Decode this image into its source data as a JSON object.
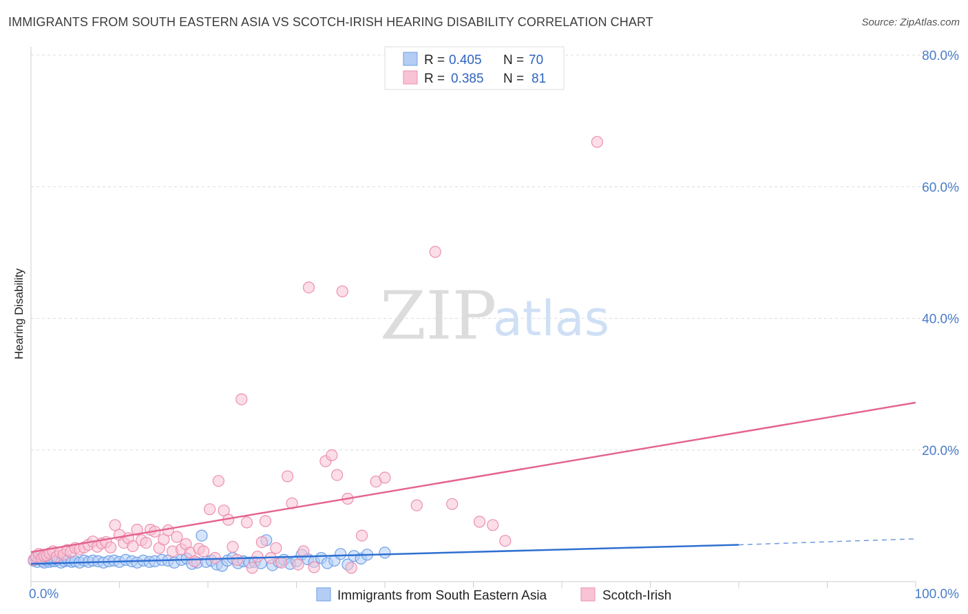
{
  "header": {
    "title": "IMMIGRANTS FROM SOUTH EASTERN ASIA VS SCOTCH-IRISH HEARING DISABILITY CORRELATION CHART",
    "source": "Source: ZipAtlas.com"
  },
  "watermark": {
    "zip": "ZIP",
    "atlas": "atlas"
  },
  "legend": {
    "rows": [
      {
        "r_label": "R =",
        "r_value": "0.405",
        "n_label": "N =",
        "n_value": "70",
        "color": "#8fb4f0"
      },
      {
        "r_label": "R =",
        "r_value": "0.385",
        "n_label": "N =",
        "n_value": "81",
        "color": "#f5a8c0"
      }
    ]
  },
  "chart_data": {
    "type": "scatter",
    "title": "IMMIGRANTS FROM SOUTH EASTERN ASIA VS SCOTCH-IRISH HEARING DISABILITY CORRELATION CHART",
    "xlabel": "",
    "ylabel": "Hearing Disability",
    "xlim": [
      0,
      100
    ],
    "ylim": [
      0,
      80
    ],
    "x_tick_labels": [
      "0.0%",
      "100.0%"
    ],
    "y_ticks": [
      20,
      40,
      60,
      80
    ],
    "y_tick_labels": [
      "20.0%",
      "40.0%",
      "60.0%",
      "80.0%"
    ],
    "grid": true,
    "series": [
      {
        "name": "Immigrants from South Eastern Asia",
        "color": "#6f9fe6",
        "fill": "#b3cdf5",
        "line_color": "#2e6fd1",
        "trend": {
          "x0": 0,
          "y0": 2.7,
          "x1": 80,
          "y1": 5.6,
          "dashed_to_x": 100,
          "dashed_to_y": 6.5
        },
        "points": [
          [
            0.3,
            3.2
          ],
          [
            0.5,
            3.6
          ],
          [
            0.7,
            3.0
          ],
          [
            0.9,
            3.4
          ],
          [
            1.1,
            3.9
          ],
          [
            1.3,
            3.1
          ],
          [
            1.5,
            2.9
          ],
          [
            1.7,
            3.3
          ],
          [
            1.9,
            3.5
          ],
          [
            2.1,
            3.0
          ],
          [
            2.4,
            3.2
          ],
          [
            2.7,
            3.1
          ],
          [
            3.0,
            3.3
          ],
          [
            3.4,
            2.9
          ],
          [
            3.8,
            3.1
          ],
          [
            4.2,
            3.2
          ],
          [
            4.6,
            3.0
          ],
          [
            5.0,
            3.1
          ],
          [
            5.5,
            2.9
          ],
          [
            6.0,
            3.2
          ],
          [
            6.5,
            3.0
          ],
          [
            7.0,
            3.2
          ],
          [
            7.6,
            3.1
          ],
          [
            8.2,
            2.9
          ],
          [
            8.8,
            3.1
          ],
          [
            9.4,
            3.2
          ],
          [
            10.0,
            3.0
          ],
          [
            10.7,
            3.3
          ],
          [
            11.4,
            3.1
          ],
          [
            12.0,
            2.9
          ],
          [
            12.7,
            3.2
          ],
          [
            13.4,
            3.0
          ],
          [
            14.0,
            3.1
          ],
          [
            14.8,
            3.3
          ],
          [
            15.5,
            3.2
          ],
          [
            16.2,
            2.9
          ],
          [
            17.0,
            3.3
          ],
          [
            17.6,
            3.5
          ],
          [
            18.2,
            2.7
          ],
          [
            18.8,
            2.9
          ],
          [
            19.3,
            7.0
          ],
          [
            19.8,
            3.0
          ],
          [
            20.4,
            3.2
          ],
          [
            21.0,
            2.6
          ],
          [
            21.6,
            2.4
          ],
          [
            22.2,
            3.2
          ],
          [
            22.8,
            3.6
          ],
          [
            23.4,
            2.8
          ],
          [
            24.0,
            3.1
          ],
          [
            24.7,
            2.9
          ],
          [
            25.3,
            3.0
          ],
          [
            26.0,
            2.8
          ],
          [
            26.6,
            6.3
          ],
          [
            27.3,
            2.5
          ],
          [
            28.0,
            3.0
          ],
          [
            28.6,
            3.3
          ],
          [
            29.3,
            2.7
          ],
          [
            30.0,
            3.1
          ],
          [
            30.6,
            4.1
          ],
          [
            31.3,
            3.4
          ],
          [
            32.0,
            3.0
          ],
          [
            32.8,
            3.6
          ],
          [
            33.5,
            2.8
          ],
          [
            34.3,
            3.2
          ],
          [
            35.0,
            4.2
          ],
          [
            35.8,
            2.6
          ],
          [
            36.5,
            3.9
          ],
          [
            37.3,
            3.5
          ],
          [
            38.0,
            4.1
          ],
          [
            40.0,
            4.4
          ]
        ]
      },
      {
        "name": "Scotch-Irish",
        "color": "#ec8fb0",
        "fill": "#f8c3d4",
        "line_color": "#e4648f",
        "trend": {
          "x0": 0,
          "y0": 4.5,
          "x1": 100,
          "y1": 27.2
        },
        "points": [
          [
            0.3,
            3.3
          ],
          [
            0.6,
            3.8
          ],
          [
            0.9,
            4.2
          ],
          [
            1.2,
            3.5
          ],
          [
            1.5,
            3.9
          ],
          [
            1.8,
            4.0
          ],
          [
            2.1,
            4.3
          ],
          [
            2.5,
            4.6
          ],
          [
            2.9,
            3.8
          ],
          [
            3.3,
            4.4
          ],
          [
            3.7,
            4.1
          ],
          [
            4.1,
            4.8
          ],
          [
            4.5,
            4.5
          ],
          [
            5.0,
            5.1
          ],
          [
            5.5,
            4.9
          ],
          [
            6.0,
            5.2
          ],
          [
            6.5,
            5.6
          ],
          [
            7.0,
            6.1
          ],
          [
            7.5,
            5.3
          ],
          [
            8.0,
            5.8
          ],
          [
            8.5,
            6.0
          ],
          [
            9.0,
            5.2
          ],
          [
            9.5,
            8.6
          ],
          [
            10.0,
            7.1
          ],
          [
            10.5,
            5.9
          ],
          [
            11.0,
            6.6
          ],
          [
            11.5,
            5.4
          ],
          [
            12.0,
            7.9
          ],
          [
            12.5,
            6.3
          ],
          [
            13.0,
            5.9
          ],
          [
            13.5,
            7.9
          ],
          [
            14.0,
            7.6
          ],
          [
            14.5,
            5.1
          ],
          [
            15.0,
            6.4
          ],
          [
            15.5,
            7.8
          ],
          [
            16.0,
            4.6
          ],
          [
            16.5,
            6.8
          ],
          [
            17.0,
            4.9
          ],
          [
            17.5,
            5.7
          ],
          [
            18.0,
            4.4
          ],
          [
            18.5,
            3.1
          ],
          [
            19.0,
            5.0
          ],
          [
            19.5,
            4.6
          ],
          [
            20.2,
            11.0
          ],
          [
            20.8,
            3.6
          ],
          [
            21.2,
            15.3
          ],
          [
            21.8,
            10.8
          ],
          [
            22.3,
            9.4
          ],
          [
            22.8,
            5.3
          ],
          [
            23.3,
            3.3
          ],
          [
            23.8,
            27.7
          ],
          [
            24.4,
            9.0
          ],
          [
            25.0,
            2.1
          ],
          [
            25.6,
            3.8
          ],
          [
            26.1,
            6.0
          ],
          [
            26.5,
            9.2
          ],
          [
            27.1,
            3.6
          ],
          [
            27.7,
            5.1
          ],
          [
            28.3,
            2.9
          ],
          [
            29.0,
            16.0
          ],
          [
            29.5,
            11.9
          ],
          [
            30.2,
            2.6
          ],
          [
            30.8,
            4.6
          ],
          [
            31.4,
            44.7
          ],
          [
            32.0,
            2.2
          ],
          [
            33.3,
            18.3
          ],
          [
            34.0,
            19.2
          ],
          [
            34.6,
            16.2
          ],
          [
            35.2,
            44.1
          ],
          [
            35.8,
            12.6
          ],
          [
            36.2,
            2.1
          ],
          [
            37.4,
            7.0
          ],
          [
            39.0,
            15.2
          ],
          [
            40.0,
            15.8
          ],
          [
            43.6,
            11.6
          ],
          [
            45.7,
            50.1
          ],
          [
            47.6,
            11.8
          ],
          [
            50.7,
            9.1
          ],
          [
            52.2,
            8.6
          ],
          [
            53.6,
            6.2
          ],
          [
            64.0,
            66.8
          ]
        ]
      }
    ],
    "legend_position": "top-center"
  },
  "bottom_legend": {
    "items": [
      {
        "label": "Immigrants from South Eastern Asia",
        "color": "#b3cdf5",
        "border": "#6f9fe6"
      },
      {
        "label": "Scotch-Irish",
        "color": "#f8c3d4",
        "border": "#ec8fb0"
      }
    ]
  }
}
